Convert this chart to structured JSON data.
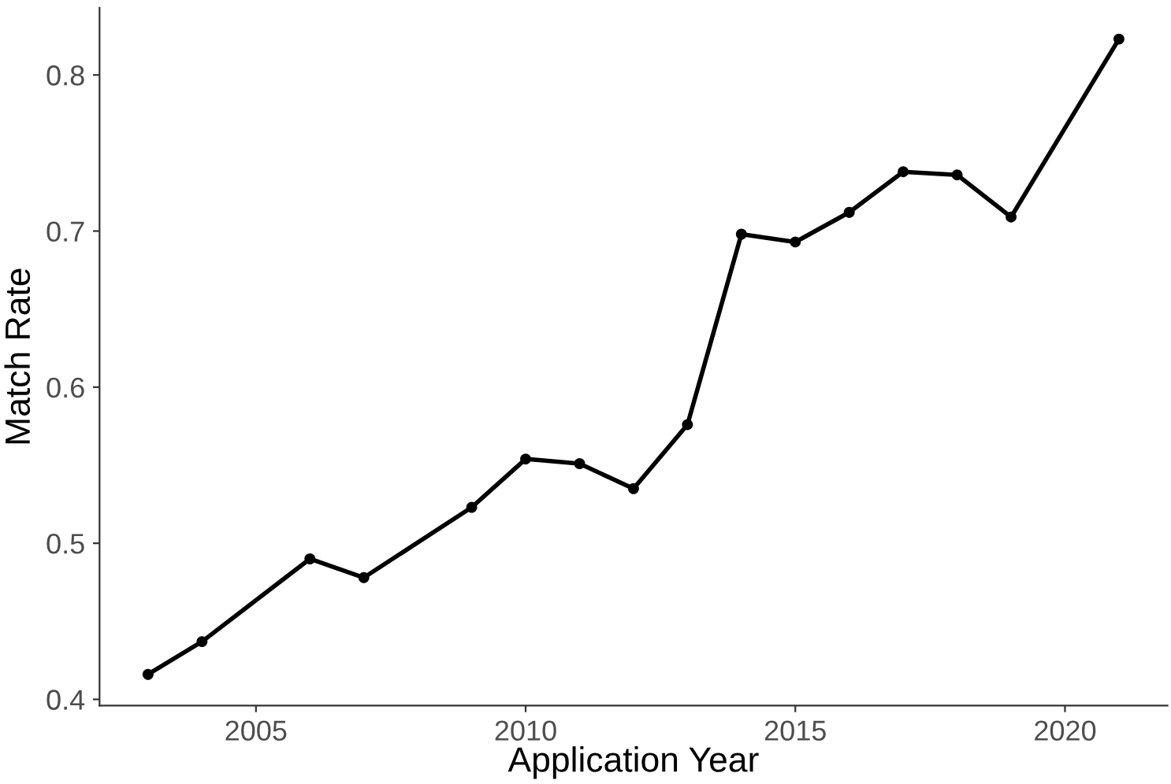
{
  "chart_data": {
    "type": "line",
    "xlabel": "Application Year",
    "ylabel": "Match Rate",
    "x": [
      2003,
      2004,
      2006,
      2007,
      2009,
      2010,
      2011,
      2012,
      2013,
      2014,
      2015,
      2016,
      2017,
      2018,
      2019,
      2021
    ],
    "series": [
      {
        "color": "#000000",
        "values": [
          0.416,
          0.437,
          0.49,
          0.478,
          0.523,
          0.554,
          0.551,
          0.535,
          0.576,
          0.698,
          0.693,
          0.712,
          0.738,
          0.736,
          0.709,
          0.823
        ]
      }
    ],
    "xlim": [
      2002.1,
      2021.9
    ],
    "xticks": [
      2005,
      2010,
      2015,
      2020
    ],
    "ylim": [
      0.396,
      0.843
    ],
    "yticks": [
      0.4,
      0.5,
      0.6,
      0.7,
      0.8
    ],
    "marker": "circle",
    "line_style": "solid",
    "grid": false
  }
}
